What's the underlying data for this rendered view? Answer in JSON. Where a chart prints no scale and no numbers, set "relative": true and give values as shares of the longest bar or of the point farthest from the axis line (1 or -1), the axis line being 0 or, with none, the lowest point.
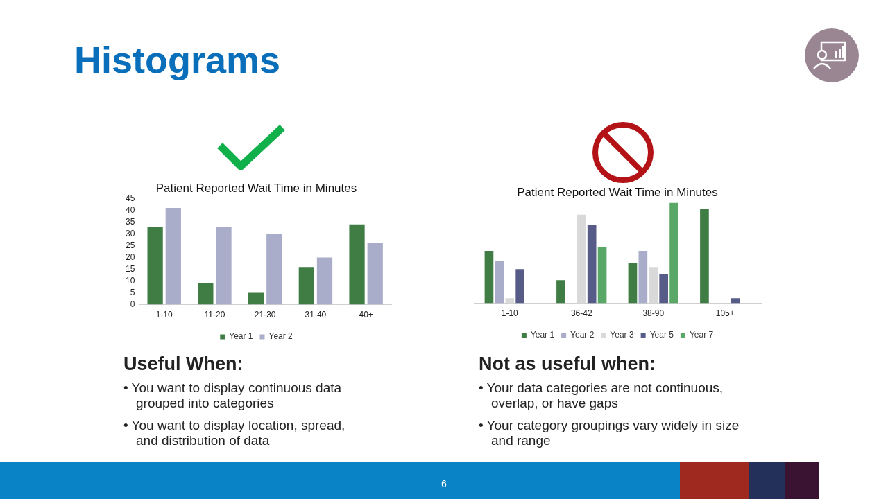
{
  "chart_data": [
    {
      "type": "bar",
      "title": "Patient Reported Wait Time in Minutes",
      "categories": [
        "1-10",
        "11-20",
        "21-30",
        "31-40",
        "40+"
      ],
      "series": [
        {
          "name": "Year 1",
          "color": "#3f7d45",
          "values": [
            33,
            9,
            5,
            16,
            34
          ]
        },
        {
          "name": "Year 2",
          "color": "#a9adc9",
          "values": [
            41,
            33,
            30,
            20,
            26
          ]
        }
      ],
      "ylim": [
        0,
        45
      ],
      "yticks": [
        0,
        5,
        10,
        15,
        20,
        25,
        30,
        35,
        40,
        45
      ],
      "grid": false,
      "legend": "bottom",
      "annotations": [
        "Histograms",
        "Useful When:",
        "• You want to display continuous data grouped into categories",
        "• You want to display location, spread, and distribution of data"
      ]
    },
    {
      "type": "bar",
      "title": "Patient Reported Wait Time in Minutes",
      "categories": [
        "1-10",
        "36-42",
        "38-90",
        "105+"
      ],
      "relative": true,
      "series": [
        {
          "name": "Year 1",
          "color": "#3f7d45",
          "values": [
            0.52,
            0.23,
            0.4,
            0.94
          ]
        },
        {
          "name": "Year 2",
          "color": "#a9adc9",
          "values": [
            0.42,
            null,
            0.52,
            null
          ]
        },
        {
          "name": "Year 3",
          "color": "#d9d9d9",
          "values": [
            0.05,
            0.88,
            0.36,
            null
          ]
        },
        {
          "name": "Year 5",
          "color": "#565b87",
          "values": [
            0.34,
            0.78,
            0.29,
            0.05
          ]
        },
        {
          "name": "Year 7",
          "color": "#5aa867",
          "values": [
            null,
            0.56,
            1,
            null
          ]
        }
      ],
      "grid": false,
      "legend": "bottom",
      "annotations": [
        "Not as useful when:",
        "• Your data categories are not continuous, overlap, or have gaps",
        "• Your category groupings vary widely in size and range",
        "6"
      ]
    }
  ]
}
